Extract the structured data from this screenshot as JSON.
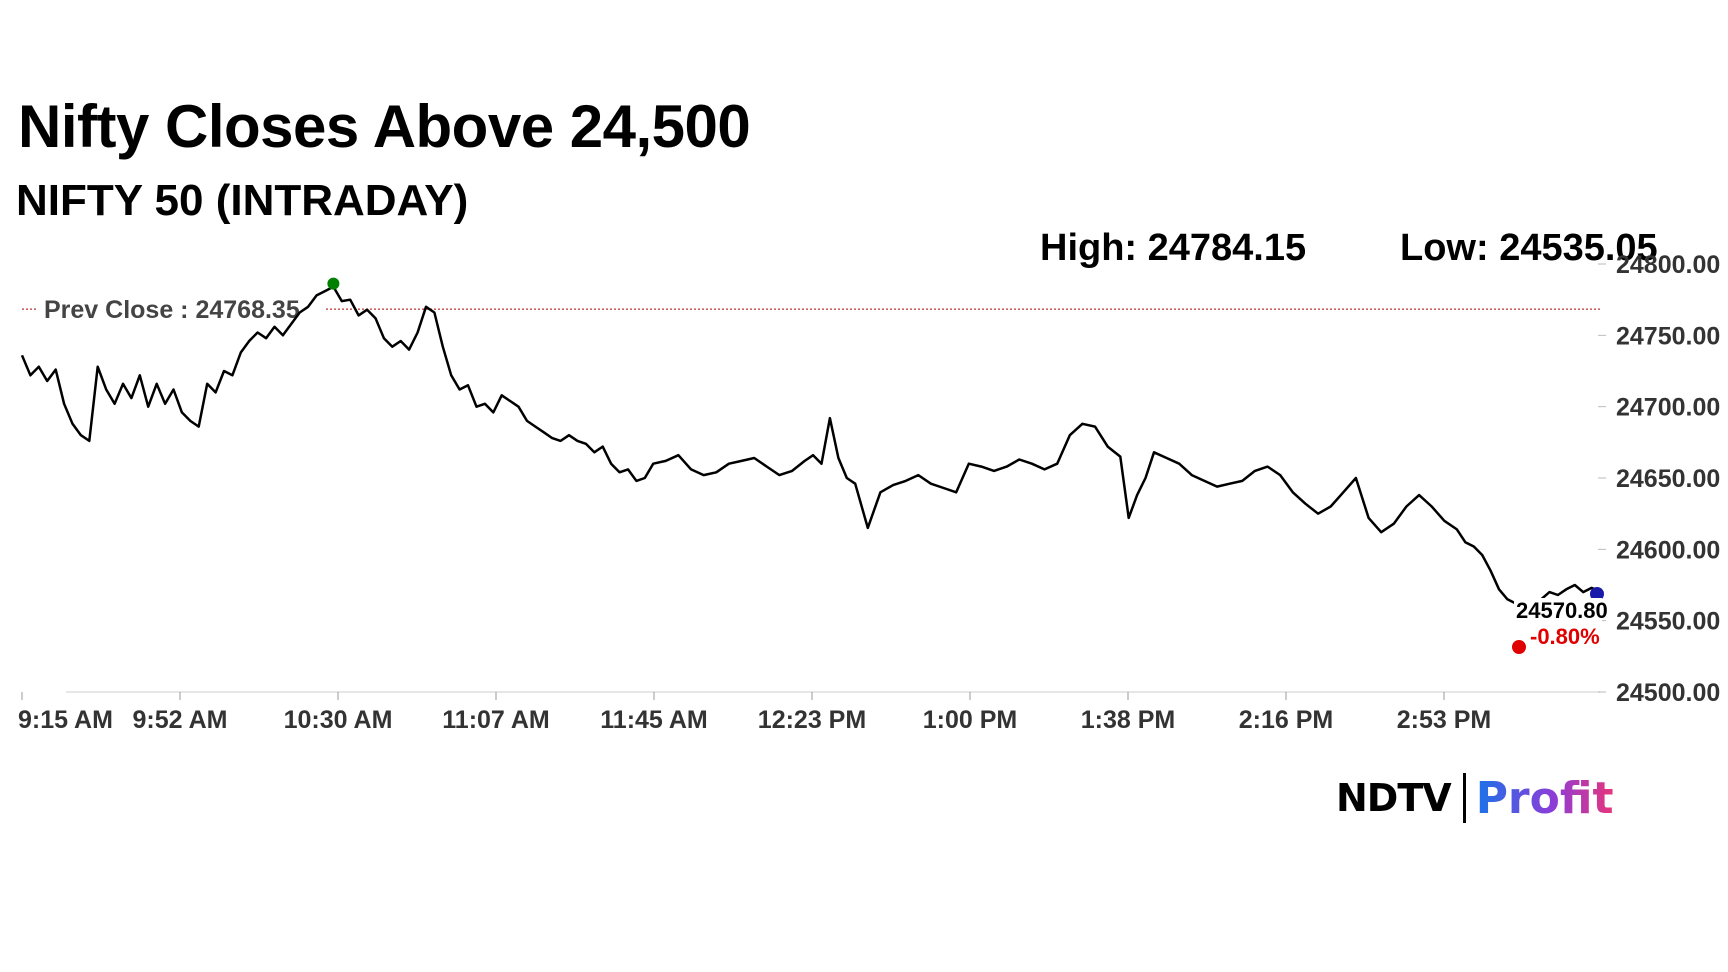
{
  "header": {
    "title": "Nifty Closes Above 24,500",
    "subtitle": "NIFTY 50 (INTRADAY)",
    "high_label": "High: 24784.15",
    "low_label": "Low: 24535.05"
  },
  "brand": {
    "ndtv": "NDTV",
    "profit": "Profit"
  },
  "colors": {
    "line": "#000000",
    "high_marker": "#008000",
    "low_marker": "#e00000",
    "last_marker": "#1a1aaa",
    "change": "#e00000",
    "prev_close_line": "#b00000",
    "profit_start": "#1a73e8",
    "profit_end": "#e8357a"
  },
  "chart_data": {
    "type": "line",
    "title": "NIFTY 50 (INTRADAY)",
    "x_ticks": [
      "9:15 AM",
      "9:52 AM",
      "10:30 AM",
      "11:07 AM",
      "11:45 AM",
      "12:23 PM",
      "1:00 PM",
      "1:38 PM",
      "2:16 PM",
      "2:53 PM"
    ],
    "y_ticks": [
      "24500.00",
      "24550.00",
      "24600.00",
      "24650.00",
      "24700.00",
      "24750.00",
      "24800.00"
    ],
    "ylim": [
      24500,
      24800
    ],
    "xlim": [
      "9:15",
      "15:30"
    ],
    "prev_close": {
      "label": "Prev Close : 24768.35",
      "value": 24768.35
    },
    "high": 24784.15,
    "low": 24535.05,
    "last": {
      "value": "24570.80",
      "change": "-0.80%"
    },
    "series": [
      {
        "x": [
          "9:15",
          "9:17",
          "9:19",
          "9:21",
          "9:23",
          "9:25",
          "9:27",
          "9:29",
          "9:31",
          "9:33",
          "9:35",
          "9:37",
          "9:39",
          "9:41",
          "9:43",
          "9:45",
          "9:47",
          "9:49",
          "9:51",
          "9:53",
          "9:55",
          "9:57",
          "9:59",
          "10:01",
          "10:03",
          "10:05",
          "10:07",
          "10:09",
          "10:11",
          "10:13",
          "10:15",
          "10:17",
          "10:19",
          "10:21",
          "10:23",
          "10:25",
          "10:27",
          "10:29",
          "10:31",
          "10:33",
          "10:35",
          "10:37",
          "10:39",
          "10:41",
          "10:43",
          "10:45",
          "10:47",
          "10:49",
          "10:51",
          "10:53",
          "10:55",
          "10:57",
          "10:59",
          "11:01",
          "11:03",
          "11:05",
          "11:07",
          "11:09",
          "11:11",
          "11:13",
          "11:15",
          "11:17",
          "11:19",
          "11:21",
          "11:23",
          "11:25",
          "11:27",
          "11:29",
          "11:31",
          "11:33",
          "11:35",
          "11:37",
          "11:39",
          "11:41",
          "11:43",
          "11:45",
          "11:48",
          "11:51",
          "11:54",
          "11:57",
          "12:00",
          "12:03",
          "12:06",
          "12:09",
          "12:12",
          "12:15",
          "12:18",
          "12:21",
          "12:23",
          "12:25",
          "12:27",
          "12:29",
          "12:31",
          "12:33",
          "12:36",
          "12:39",
          "12:42",
          "12:45",
          "12:48",
          "12:51",
          "12:54",
          "12:57",
          "13:00",
          "13:03",
          "13:06",
          "13:09",
          "13:12",
          "13:15",
          "13:18",
          "13:21",
          "13:24",
          "13:27",
          "13:30",
          "13:33",
          "13:36",
          "13:38",
          "13:40",
          "13:42",
          "13:44",
          "13:47",
          "13:50",
          "13:53",
          "13:56",
          "13:59",
          "14:02",
          "14:05",
          "14:08",
          "14:11",
          "14:14",
          "14:17",
          "14:20",
          "14:23",
          "14:26",
          "14:29",
          "14:32",
          "14:35",
          "14:38",
          "14:41",
          "14:44",
          "14:47",
          "14:50",
          "14:53",
          "14:56",
          "14:58",
          "15:00",
          "15:02",
          "15:04",
          "15:06",
          "15:08",
          "15:10",
          "15:12",
          "15:14",
          "15:16",
          "15:18",
          "15:20",
          "15:22",
          "15:24",
          "15:26",
          "15:28",
          "15:30"
        ],
        "y": [
          24736,
          24722,
          24728,
          24718,
          24726,
          24702,
          24688,
          24680,
          24676,
          24728,
          24712,
          24702,
          24716,
          24706,
          24722,
          24700,
          24716,
          24702,
          24712,
          24696,
          24690,
          24686,
          24716,
          24710,
          24725,
          24722,
          24738,
          24746,
          24752,
          24748,
          24756,
          24750,
          24758,
          24766,
          24770,
          24778,
          24781,
          24784,
          24774,
          24775,
          24764,
          24768,
          24762,
          24748,
          24742,
          24746,
          24740,
          24752,
          24770,
          24766,
          24742,
          24722,
          24712,
          24715,
          24700,
          24702,
          24696,
          24708,
          24704,
          24700,
          24690,
          24686,
          24682,
          24678,
          24676,
          24680,
          24676,
          24674,
          24668,
          24672,
          24660,
          24654,
          24656,
          24648,
          24650,
          24660,
          24662,
          24666,
          24656,
          24652,
          24654,
          24660,
          24662,
          24664,
          24658,
          24652,
          24655,
          24662,
          24666,
          24660,
          24692,
          24664,
          24650,
          24646,
          24615,
          24640,
          24645,
          24648,
          24652,
          24646,
          24643,
          24640,
          24660,
          24658,
          24655,
          24658,
          24663,
          24660,
          24656,
          24660,
          24680,
          24688,
          24686,
          24672,
          24665,
          24622,
          24638,
          24650,
          24668,
          24664,
          24660,
          24652,
          24648,
          24644,
          24646,
          24648,
          24655,
          24658,
          24652,
          24640,
          24632,
          24625,
          24630,
          24640,
          24650,
          24622,
          24612,
          24618,
          24630,
          24638,
          24630,
          24620,
          24614,
          24605,
          24602,
          24596,
          24585,
          24572,
          24565,
          24562,
          24558,
          24560,
          24565,
          24570,
          24568,
          24572,
          24575,
          24570,
          24573,
          24570.8
        ]
      }
    ]
  }
}
